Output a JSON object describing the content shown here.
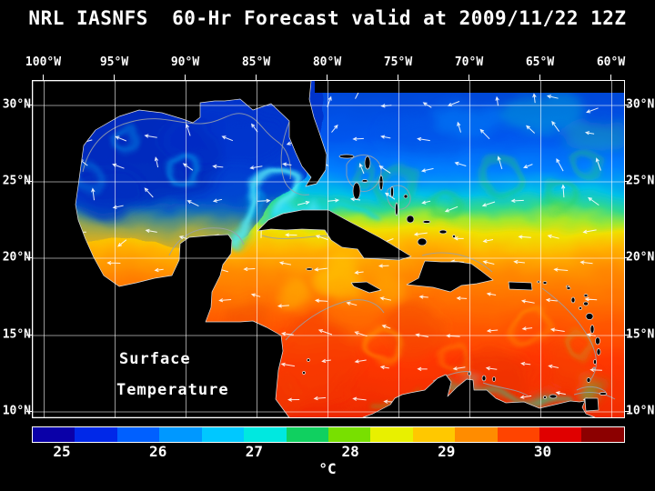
{
  "title": "NRL IASNFS  60-Hr Forecast valid at 2009/11/22 12Z",
  "axes": {
    "lon_labels": [
      "100°W",
      "95°W",
      "90°W",
      "85°W",
      "80°W",
      "75°W",
      "70°W",
      "65°W",
      "60°W"
    ],
    "lat_labels_left": [
      "30°N",
      "25°N",
      "20°N",
      "15°N",
      "10°N"
    ],
    "lat_labels_right": [
      "30°N",
      "25°N",
      "20°N",
      "15°N",
      "10°N"
    ]
  },
  "map": {
    "field_label_line1": "Surface",
    "field_label_line2": "Temperature"
  },
  "colorbar": {
    "tick_labels": [
      "25",
      "26",
      "27",
      "28",
      "29",
      "30"
    ],
    "unit": "°C",
    "min_label_value": 25,
    "max_label_value": 30,
    "segments": [
      "#0a00a8",
      "#0028e8",
      "#0060ff",
      "#0098ff",
      "#00c8ff",
      "#00e8e0",
      "#10d060",
      "#78e000",
      "#e8f000",
      "#ffc800",
      "#ff8c00",
      "#ff4400",
      "#e00000",
      "#8c0000"
    ]
  }
}
